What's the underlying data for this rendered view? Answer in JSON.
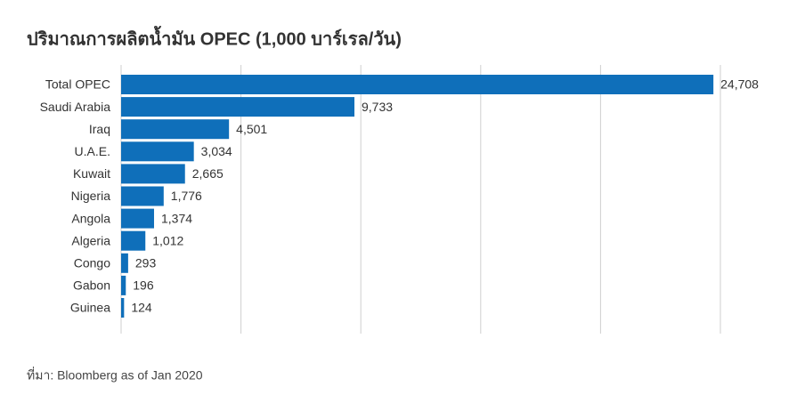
{
  "chart_data": {
    "type": "bar",
    "orientation": "horizontal",
    "title": "ปริมาณการผลิตน้ำมัน OPEC  (1,000 บาร์เรล/วัน)",
    "categories": [
      "Total OPEC",
      "Saudi Arabia",
      "Iraq",
      "U.A.E.",
      "Kuwait",
      "Nigeria",
      "Angola",
      "Algeria",
      "Congo",
      "Gabon",
      "Guinea"
    ],
    "values": [
      24708,
      9733,
      4501,
      3034,
      2665,
      1776,
      1374,
      1012,
      293,
      196,
      124
    ],
    "value_labels": [
      "24,708",
      "9,733",
      "4,501",
      "3,034",
      "2,665",
      "1,776",
      "1,374",
      "1,012",
      "293",
      "196",
      "124"
    ],
    "color": "#0f6fba",
    "xlim": [
      0,
      25000
    ],
    "xticks": [
      0,
      5000,
      10000,
      15000,
      20000,
      25000
    ],
    "grid": true,
    "source": "ที่มา: Bloomberg as of Jan 2020"
  }
}
